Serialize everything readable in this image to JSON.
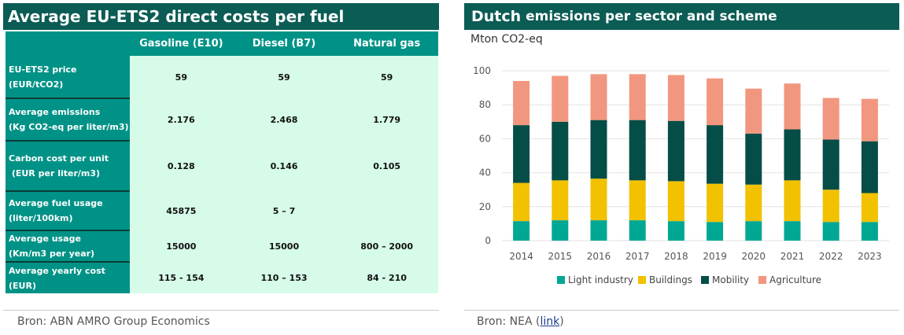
{
  "left_panel": {
    "title": "Average EU-ETS2 direct costs per fuel",
    "columns": [
      "",
      "Gasoline (E10)",
      "Diesel (B7)",
      "Natural gas"
    ],
    "rows": [
      {
        "label1": "EU-ETS2 price",
        "label2": "(EUR/tCO2)",
        "values": [
          "59",
          "59",
          "59"
        ]
      },
      {
        "label1": "Average emissions",
        "label2": "(Kg CO2-eq per liter/m3)",
        "values": [
          "2.176",
          "2.468",
          "1.779"
        ]
      },
      {
        "label1": "Carbon cost per unit",
        "label2": " (EUR per liter/m3)",
        "values": [
          "0.128",
          "0.146",
          "0.105"
        ]
      },
      {
        "label1": "Average fuel usage",
        "label2": "(liter/100km)",
        "values": [
          "45875",
          "5 – 7",
          ""
        ]
      },
      {
        "label1": "Average usage",
        "label2": "(Km/m3 per year)",
        "values": [
          "15000",
          "15000",
          "800 – 2000"
        ]
      },
      {
        "label1": "Average yearly cost",
        "label2": "(EUR)",
        "values": [
          "115 - 154",
          "110 – 153",
          "84 - 210"
        ]
      }
    ],
    "source": "Bron: ABN AMRO Group Economics"
  },
  "right_panel": {
    "title_part1": "Dutch",
    "title_part2": " emissions per sector and scheme",
    "source_prefix": "Bron: NEA (",
    "source_link": "link",
    "source_suffix": ")"
  },
  "chart_data": {
    "type": "bar",
    "stacked": true,
    "ylabel": "Mton CO2-eq",
    "ylim": [
      0,
      100
    ],
    "yticks": [
      0,
      20,
      40,
      60,
      80,
      100
    ],
    "categories": [
      "2014",
      "2015",
      "2016",
      "2017",
      "2018",
      "2019",
      "2020",
      "2021",
      "2022",
      "2023"
    ],
    "series": [
      {
        "name": "Light industry",
        "color": "#00a894",
        "values": [
          11.5,
          12,
          12,
          12,
          11.5,
          11,
          11.5,
          11.5,
          11,
          11
        ]
      },
      {
        "name": "Buildings",
        "color": "#f2c100",
        "values": [
          22.5,
          23.5,
          24.5,
          23.5,
          23.5,
          22.5,
          21.5,
          24,
          19,
          17
        ]
      },
      {
        "name": "Mobility",
        "color": "#054d47",
        "values": [
          34,
          34.5,
          34.5,
          35.5,
          35.5,
          34.5,
          30,
          30,
          29.5,
          30.5
        ]
      },
      {
        "name": "Agriculture",
        "color": "#f2977f",
        "values": [
          26,
          27,
          27,
          27,
          27,
          27.5,
          26.5,
          27,
          24.5,
          25
        ]
      }
    ],
    "legend_position": "bottom",
    "grid": true
  }
}
